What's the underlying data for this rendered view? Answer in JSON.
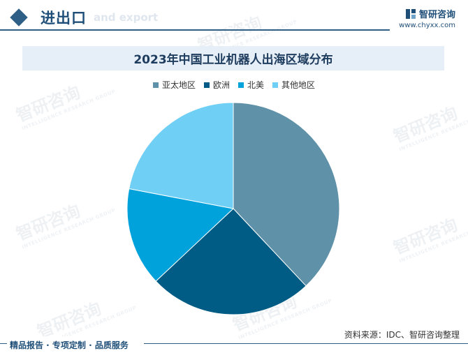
{
  "header": {
    "title": "进出口",
    "subtitle": "and export"
  },
  "brand": {
    "name": "智研咨询",
    "url": "www.chyxx.com"
  },
  "watermark": {
    "text": "智研咨询",
    "subtext": "INTELLIGENCE RESEARCH GROUP"
  },
  "chart_data": {
    "type": "pie",
    "title": "2023年中国工业机器人出海区域分布",
    "legend_position": "top",
    "categories": [
      "亚太地区",
      "欧洲",
      "北美",
      "其他地区"
    ],
    "values": [
      38,
      25,
      15,
      22
    ],
    "colors": [
      "#5f91a8",
      "#005c84",
      "#00a2db",
      "#6fcff5"
    ],
    "start": "12 o'clock",
    "direction": "clockwise"
  },
  "footer": {
    "left": "精品报告 · 专项定制 · 品质服务",
    "source": "资料来源：IDC、智研咨询整理"
  },
  "colors": {
    "brand": "#1f4f78",
    "title_bar_bg": "#e6eef7"
  }
}
